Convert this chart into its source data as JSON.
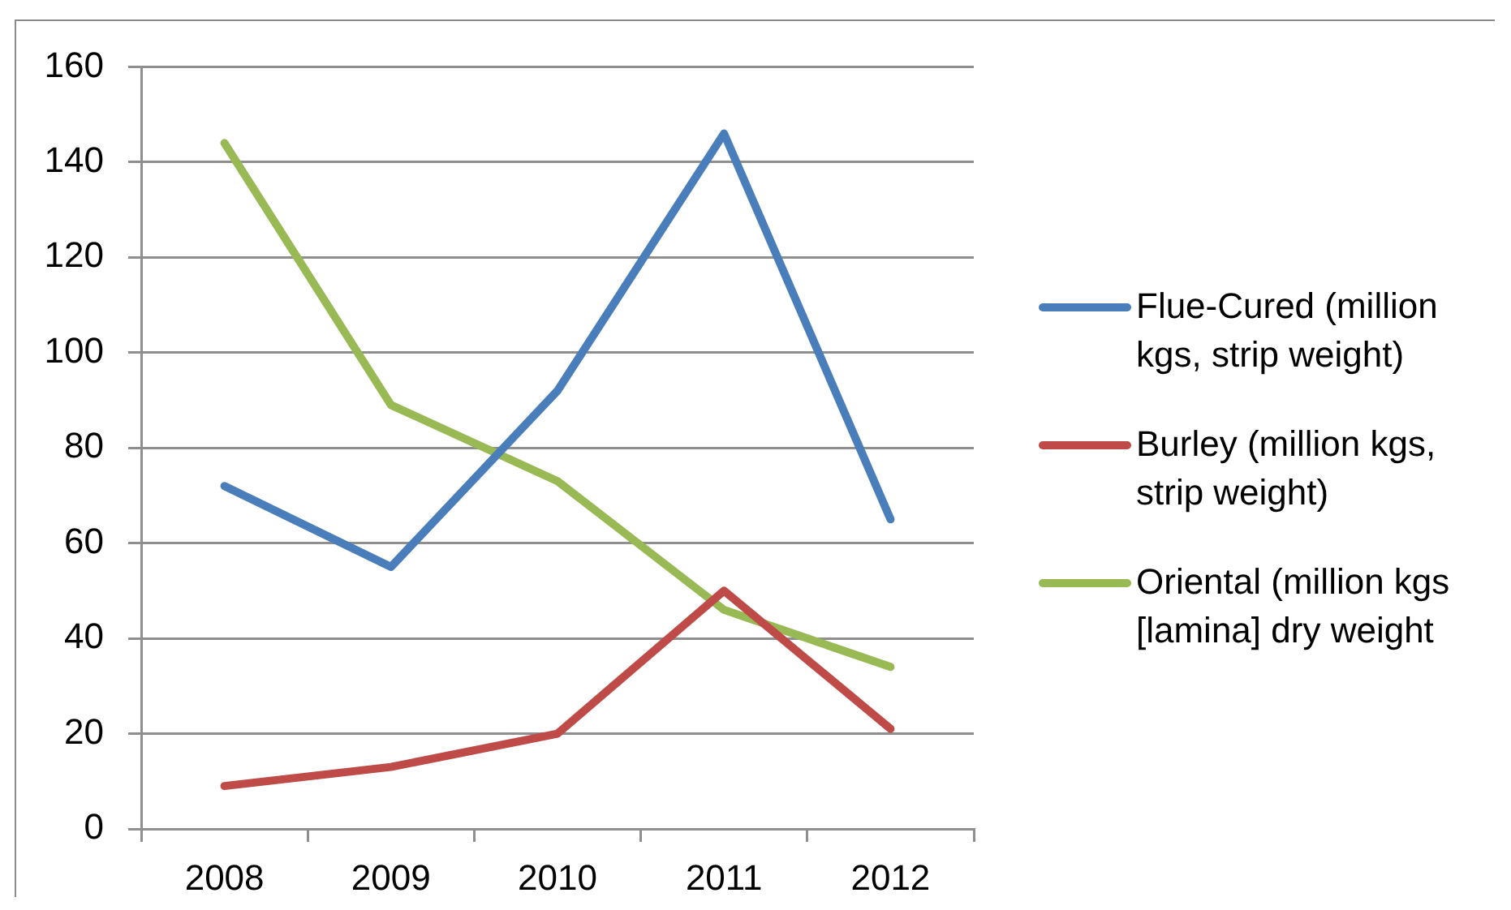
{
  "chart_data": {
    "type": "line",
    "categories": [
      "2008",
      "2009",
      "2010",
      "2011",
      "2012"
    ],
    "series": [
      {
        "name": "Flue-Cured (million kgs, strip weight)",
        "color": "#4a7ebb",
        "values": [
          72,
          55,
          92,
          146,
          65
        ]
      },
      {
        "name": "Burley (million kgs, strip weight)",
        "color": "#be4b48",
        "values": [
          9,
          13,
          20,
          50,
          21
        ]
      },
      {
        "name": "Oriental (million kgs [lamina] dry weight",
        "color": "#98b954",
        "values": [
          144,
          89,
          73,
          46,
          34
        ]
      }
    ],
    "ylim": [
      0,
      160
    ],
    "yticks": [
      0,
      20,
      40,
      60,
      80,
      100,
      120,
      140,
      160
    ],
    "grid": "y",
    "legend": "right",
    "marker": "none",
    "line_style": "solid"
  }
}
